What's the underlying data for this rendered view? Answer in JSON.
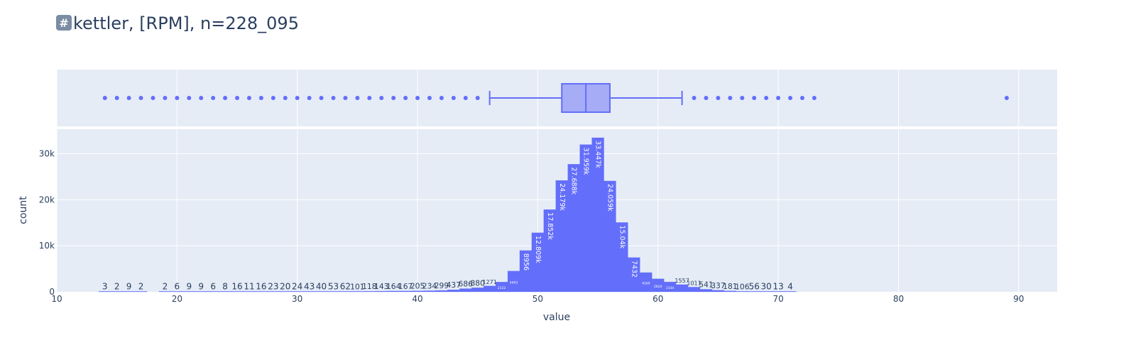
{
  "title": {
    "icon": "hash-keycap-icon",
    "icon_glyph": "#",
    "text": "kettler, [RPM], n=228_095"
  },
  "colors": {
    "bar": "#636efa",
    "box_fill": "#a6acf6",
    "plot_bg": "#e5ecf6",
    "grid": "#ffffff",
    "text": "#2a3f5f"
  },
  "chart_data": {
    "type": "bar",
    "xlabel": "value",
    "ylabel": "count",
    "xlim": [
      10,
      93.2
    ],
    "ylim": [
      0,
      35300
    ],
    "x_ticks": [
      10,
      20,
      30,
      40,
      50,
      60,
      70,
      80,
      90
    ],
    "y_ticks": [
      0,
      10000,
      20000,
      30000
    ],
    "y_tick_labels": [
      "0",
      "10k",
      "20k",
      "30k"
    ],
    "bin_width": 1,
    "bins": [
      {
        "x": 14,
        "count": 3,
        "label": "3"
      },
      {
        "x": 15,
        "count": 2,
        "label": "2"
      },
      {
        "x": 16,
        "count": 9,
        "label": "9"
      },
      {
        "x": 17,
        "count": 2,
        "label": "2"
      },
      {
        "x": 19,
        "count": 2,
        "label": "2"
      },
      {
        "x": 20,
        "count": 6,
        "label": "6"
      },
      {
        "x": 21,
        "count": 9,
        "label": "9"
      },
      {
        "x": 22,
        "count": 9,
        "label": "9"
      },
      {
        "x": 23,
        "count": 6,
        "label": "6"
      },
      {
        "x": 24,
        "count": 8,
        "label": "8"
      },
      {
        "x": 25,
        "count": 16,
        "label": "16"
      },
      {
        "x": 26,
        "count": 11,
        "label": "11"
      },
      {
        "x": 27,
        "count": 16,
        "label": "16"
      },
      {
        "x": 28,
        "count": 23,
        "label": "23"
      },
      {
        "x": 29,
        "count": 20,
        "label": "20"
      },
      {
        "x": 30,
        "count": 24,
        "label": "24"
      },
      {
        "x": 31,
        "count": 43,
        "label": "43"
      },
      {
        "x": 32,
        "count": 40,
        "label": "40"
      },
      {
        "x": 33,
        "count": 53,
        "label": "53"
      },
      {
        "x": 34,
        "count": 62,
        "label": "62"
      },
      {
        "x": 35,
        "count": 101,
        "label": "101"
      },
      {
        "x": 36,
        "count": 118,
        "label": "118"
      },
      {
        "x": 37,
        "count": 143,
        "label": "143"
      },
      {
        "x": 38,
        "count": 164,
        "label": "164"
      },
      {
        "x": 39,
        "count": 167,
        "label": "167"
      },
      {
        "x": 40,
        "count": 205,
        "label": "205"
      },
      {
        "x": 41,
        "count": 234,
        "label": "234"
      },
      {
        "x": 42,
        "count": 299,
        "label": "299"
      },
      {
        "x": 43,
        "count": 437,
        "label": "437"
      },
      {
        "x": 44,
        "count": 686,
        "label": "686"
      },
      {
        "x": 45,
        "count": 880,
        "label": "880"
      },
      {
        "x": 46,
        "count": 1271,
        "label": "1271"
      },
      {
        "x": 47,
        "count": 2122,
        "label": "2122"
      },
      {
        "x": 48,
        "count": 4493,
        "label": "4493"
      },
      {
        "x": 49,
        "count": 8956,
        "label": "8956"
      },
      {
        "x": 50,
        "count": 12809,
        "label": "12.809k"
      },
      {
        "x": 51,
        "count": 17852,
        "label": "17.852k"
      },
      {
        "x": 52,
        "count": 24179,
        "label": "24.179k"
      },
      {
        "x": 53,
        "count": 27688,
        "label": "27.688k"
      },
      {
        "x": 54,
        "count": 31959,
        "label": "31.959k"
      },
      {
        "x": 55,
        "count": 33447,
        "label": "33.447k"
      },
      {
        "x": 56,
        "count": 24059,
        "label": "24.059k"
      },
      {
        "x": 57,
        "count": 15040,
        "label": "15.04k"
      },
      {
        "x": 58,
        "count": 7432,
        "label": "7432"
      },
      {
        "x": 59,
        "count": 4169,
        "label": "4169"
      },
      {
        "x": 60,
        "count": 2820,
        "label": "2820"
      },
      {
        "x": 61,
        "count": 2144,
        "label": "2144"
      },
      {
        "x": 62,
        "count": 1557,
        "label": "1557"
      },
      {
        "x": 63,
        "count": 1011,
        "label": "1011"
      },
      {
        "x": 64,
        "count": 541,
        "label": "541"
      },
      {
        "x": 65,
        "count": 337,
        "label": "337"
      },
      {
        "x": 66,
        "count": 181,
        "label": "181"
      },
      {
        "x": 67,
        "count": 106,
        "label": "106"
      },
      {
        "x": 68,
        "count": 56,
        "label": "56"
      },
      {
        "x": 69,
        "count": 30,
        "label": "30"
      },
      {
        "x": 70,
        "count": 13,
        "label": "13"
      },
      {
        "x": 71,
        "count": 4,
        "label": "4"
      }
    ],
    "box": {
      "q1": 52,
      "median": 54,
      "q3": 56,
      "lower_fence": 46,
      "upper_fence": 62,
      "outliers": [
        14,
        15,
        16,
        17,
        18,
        19,
        20,
        21,
        22,
        23,
        24,
        25,
        26,
        27,
        28,
        29,
        30,
        31,
        32,
        33,
        34,
        35,
        36,
        37,
        38,
        39,
        40,
        41,
        42,
        43,
        44,
        45,
        63,
        64,
        65,
        66,
        67,
        68,
        69,
        70,
        71,
        72,
        73,
        89
      ]
    }
  }
}
